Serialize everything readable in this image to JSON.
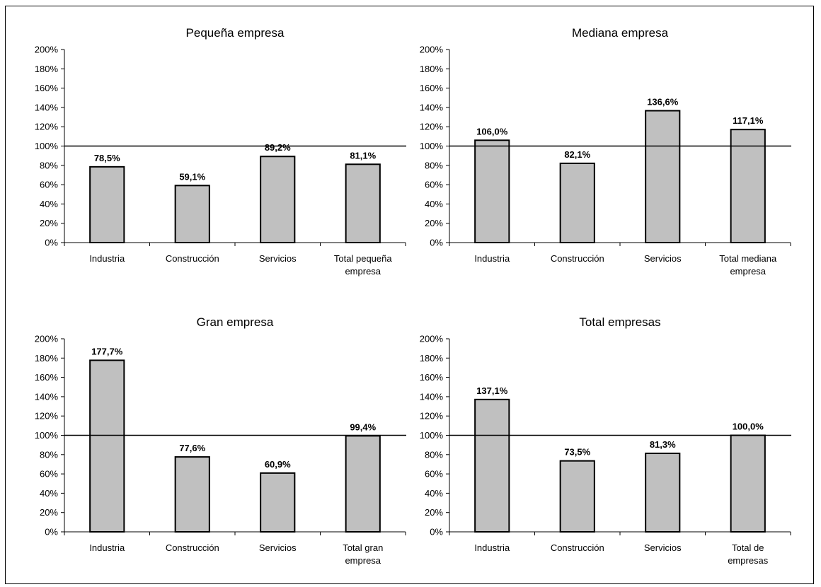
{
  "chart_data": [
    {
      "type": "bar",
      "title": "Pequeña empresa",
      "categories": [
        [
          "Industria"
        ],
        [
          "Construcción"
        ],
        [
          "Servicios"
        ],
        [
          "Total pequeña",
          "empresa"
        ]
      ],
      "values": [
        78.5,
        59.1,
        89.2,
        81.1
      ],
      "data_labels": [
        "78,5%",
        "59,1%",
        "89,2%",
        "81,1%"
      ],
      "ylim": [
        0,
        200
      ],
      "yticks": [
        "0%",
        "20%",
        "40%",
        "60%",
        "80%",
        "100%",
        "120%",
        "140%",
        "160%",
        "180%",
        "200%"
      ],
      "reference_line": 100,
      "grid": false
    },
    {
      "type": "bar",
      "title": "Mediana empresa",
      "categories": [
        [
          "Industria"
        ],
        [
          "Construcción"
        ],
        [
          "Servicios"
        ],
        [
          "Total mediana",
          "empresa"
        ]
      ],
      "values": [
        106.0,
        82.1,
        136.6,
        117.1
      ],
      "data_labels": [
        "106,0%",
        "82,1%",
        "136,6%",
        "117,1%"
      ],
      "ylim": [
        0,
        200
      ],
      "yticks": [
        "0%",
        "20%",
        "40%",
        "60%",
        "80%",
        "100%",
        "120%",
        "140%",
        "160%",
        "180%",
        "200%"
      ],
      "reference_line": 100,
      "grid": false
    },
    {
      "type": "bar",
      "title": "Gran empresa",
      "categories": [
        [
          "Industria"
        ],
        [
          "Construcción"
        ],
        [
          "Servicios"
        ],
        [
          "Total gran",
          "empresa"
        ]
      ],
      "values": [
        177.7,
        77.6,
        60.9,
        99.4
      ],
      "data_labels": [
        "177,7%",
        "77,6%",
        "60,9%",
        "99,4%"
      ],
      "ylim": [
        0,
        200
      ],
      "yticks": [
        "0%",
        "20%",
        "40%",
        "60%",
        "80%",
        "100%",
        "120%",
        "140%",
        "160%",
        "180%",
        "200%"
      ],
      "reference_line": 100,
      "grid": false
    },
    {
      "type": "bar",
      "title": "Total empresas",
      "categories": [
        [
          "Industria"
        ],
        [
          "Construcción"
        ],
        [
          "Servicios"
        ],
        [
          "Total de",
          "empresas"
        ]
      ],
      "values": [
        137.1,
        73.5,
        81.3,
        100.0
      ],
      "data_labels": [
        "137,1%",
        "73,5%",
        "81,3%",
        "100,0%"
      ],
      "ylim": [
        0,
        200
      ],
      "yticks": [
        "0%",
        "20%",
        "40%",
        "60%",
        "80%",
        "100%",
        "120%",
        "140%",
        "160%",
        "180%",
        "200%"
      ],
      "reference_line": 100,
      "grid": false
    }
  ],
  "colors": {
    "bar_fill": "#c0c0c0",
    "bar_stroke": "#000000",
    "axis": "#000000"
  }
}
